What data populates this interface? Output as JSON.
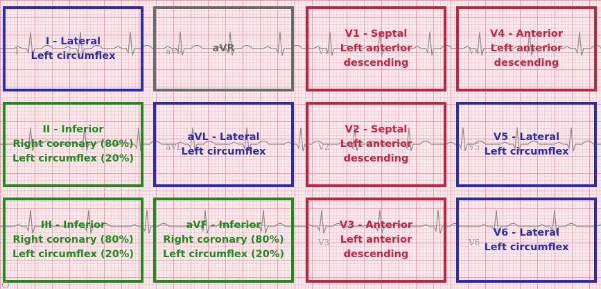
{
  "leads": [
    {
      "id": "I",
      "title": "I - Lateral",
      "lines": [
        "Left circumflex"
      ],
      "color": "blue",
      "ecg_label": "I"
    },
    {
      "id": "aVR",
      "title": "aVR",
      "lines": [],
      "color": "gray",
      "ecg_label": "aVR"
    },
    {
      "id": "V1",
      "title": "V1 - Septal",
      "lines": [
        "Left anterior",
        "descending"
      ],
      "color": "red",
      "ecg_label": "V1"
    },
    {
      "id": "V4",
      "title": "V4 - Anterior",
      "lines": [
        "Left anterior",
        "descending"
      ],
      "color": "red",
      "ecg_label": "V4"
    },
    {
      "id": "II",
      "title": "II - Inferior",
      "lines": [
        "Right coronary (80%)",
        "Left circumflex (20%)"
      ],
      "color": "green",
      "ecg_label": ""
    },
    {
      "id": "aVL",
      "title": "aVL - Lateral",
      "lines": [
        "Left circumflex"
      ],
      "color": "blue",
      "ecg_label": "aVL"
    },
    {
      "id": "V2",
      "title": "V2 - Septal",
      "lines": [
        "Left anterior",
        "descending"
      ],
      "color": "red",
      "ecg_label": "V2"
    },
    {
      "id": "V5",
      "title": "V5 - Lateral",
      "lines": [
        "Left circumflex"
      ],
      "color": "blue",
      "ecg_label": "V5"
    },
    {
      "id": "III",
      "title": "III - Inferior",
      "lines": [
        "Right coronary (80%)",
        "Left circumflex (20%)"
      ],
      "color": "green",
      "ecg_label": ""
    },
    {
      "id": "aVF",
      "title": "aVF - Inferior",
      "lines": [
        "Right coronary (80%)",
        "Left circumflex (20%)"
      ],
      "color": "green",
      "ecg_label": ""
    },
    {
      "id": "V3",
      "title": "V3 - Anterior",
      "lines": [
        "Left anterior",
        "descending"
      ],
      "color": "red",
      "ecg_label": "V3"
    },
    {
      "id": "V6",
      "title": "V6 - Lateral",
      "lines": [
        "Left circumflex"
      ],
      "color": "blue",
      "ecg_label": "V6"
    }
  ],
  "colors": {
    "blue": "#2b2bb0",
    "green": "#1f8a1f",
    "red": "#c4243f",
    "gray": "#6a6a6a",
    "trace": "#8a8a8a",
    "grid_background": "#fbe9ec"
  }
}
